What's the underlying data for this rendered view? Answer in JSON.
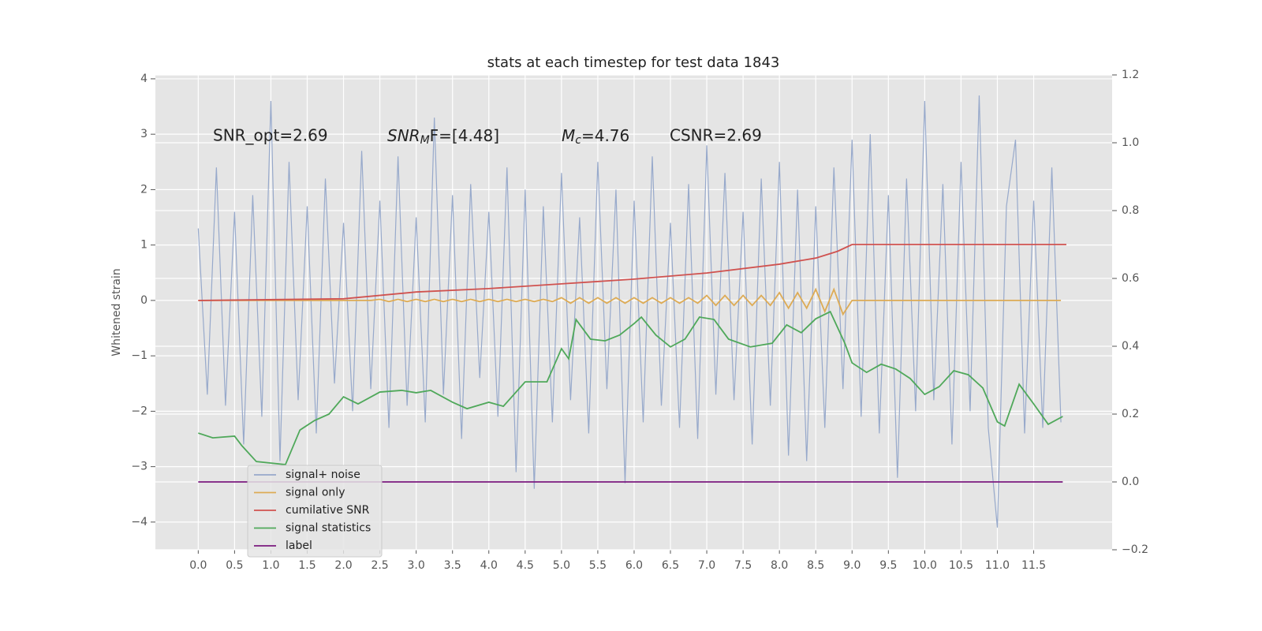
{
  "chart_data": {
    "type": "line",
    "title": "stats at each timestep for test data 1843",
    "ylabel": "Whitened strain",
    "annotations": [
      {
        "text": "SNR_opt=2.69"
      },
      {
        "text": "SNR",
        "subscript": "M",
        "suffix": "F=[4.48]"
      },
      {
        "text": "M",
        "subscript": "c",
        "suffix": "=4.76"
      },
      {
        "text": "CSNR=2.69"
      }
    ],
    "xlim": [
      -0.59,
      12.58
    ],
    "ylim": [
      -4.5,
      4.07
    ],
    "y2lim": [
      -0.2,
      1.2
    ],
    "xticks": [
      {
        "value": 0,
        "label": "0.0"
      },
      0.5,
      {
        "value": 1,
        "label": "1.0"
      },
      1.5,
      {
        "value": 2,
        "label": "2.0"
      },
      2.5,
      {
        "value": 3,
        "label": "3.0"
      },
      3.5,
      {
        "value": 4,
        "label": "4.0"
      },
      4.5,
      {
        "value": 5,
        "label": "5.0"
      },
      5.5,
      {
        "value": 6,
        "label": "6.0"
      },
      6.5,
      {
        "value": 7,
        "label": "7.0"
      },
      7.5,
      {
        "value": 8,
        "label": "8.0"
      },
      8.5,
      {
        "value": 9,
        "label": "9.0"
      },
      9.5,
      {
        "value": 10,
        "label": "10.0"
      },
      10.5,
      {
        "value": 11,
        "label": "11.0"
      },
      11.5
    ],
    "yticks": [
      4,
      3,
      2,
      1,
      0,
      {
        "value": -1,
        "label": "−1"
      },
      {
        "value": -2,
        "label": "−2"
      },
      {
        "value": -3,
        "label": "−3"
      },
      {
        "value": -4,
        "label": "−4"
      }
    ],
    "y2ticks": [
      1.2,
      {
        "value": 1,
        "label": "1.0"
      },
      0.8,
      0.6,
      0.4,
      0.2,
      {
        "value": 0,
        "label": "0.0"
      },
      {
        "value": -0.2,
        "label": "−0.2"
      }
    ],
    "grid": true,
    "legend": "lower left",
    "x": [
      0,
      0.125,
      0.25,
      0.375,
      0.5,
      0.625,
      0.75,
      0.875,
      1,
      1.125,
      1.25,
      1.375,
      1.5,
      1.625,
      1.75,
      1.875,
      2,
      2.125,
      2.25,
      2.375,
      2.5,
      2.625,
      2.75,
      2.875,
      3,
      3.125,
      3.25,
      3.375,
      3.5,
      3.625,
      3.75,
      3.875,
      4,
      4.125,
      4.25,
      4.375,
      4.5,
      4.625,
      4.75,
      4.875,
      5,
      5.125,
      5.25,
      5.375,
      5.5,
      5.625,
      5.75,
      5.875,
      6,
      6.125,
      6.25,
      6.375,
      6.5,
      6.625,
      6.75,
      6.875,
      7,
      7.125,
      7.25,
      7.375,
      7.5,
      7.625,
      7.75,
      7.875,
      8,
      8.125,
      8.25,
      8.375,
      8.5,
      8.625,
      8.75,
      8.875,
      9,
      9.125,
      9.25,
      9.375,
      9.5,
      9.625,
      9.75,
      9.875,
      10,
      10.125,
      10.25,
      10.375,
      10.5,
      10.625,
      10.75,
      10.875,
      11,
      11.125,
      11.25,
      11.375,
      11.5,
      11.625,
      11.75,
      11.875
    ],
    "series": [
      {
        "name": "signal+ noise",
        "color": "#97a9cb",
        "values": [
          1.3,
          -1.7,
          2.4,
          -1.9,
          1.6,
          -2.6,
          1.9,
          -2.1,
          3.6,
          -2.9,
          2.5,
          -1.8,
          1.7,
          -2.4,
          2.2,
          -1.5,
          1.4,
          -2.0,
          2.7,
          -1.6,
          1.8,
          -2.3,
          2.6,
          -1.9,
          1.5,
          -2.2,
          3.3,
          -1.7,
          1.9,
          -2.5,
          2.1,
          -1.4,
          1.6,
          -2.1,
          2.4,
          -3.1,
          2.0,
          -3.4,
          1.7,
          -2.2,
          2.3,
          -1.8,
          1.5,
          -2.4,
          2.5,
          -1.6,
          2.0,
          -3.3,
          1.8,
          -2.2,
          2.6,
          -1.9,
          1.4,
          -2.3,
          2.1,
          -2.5,
          2.8,
          -1.7,
          2.3,
          -1.8,
          1.6,
          -2.6,
          2.2,
          -1.9,
          2.5,
          -2.8,
          2.0,
          -2.9,
          1.7,
          -2.3,
          2.4,
          -1.6,
          2.9,
          -2.1,
          3.0,
          -2.4,
          1.9,
          -3.2,
          2.2,
          -2.0,
          3.6,
          -1.8,
          2.1,
          -2.6,
          2.5,
          -2.0,
          3.7,
          -2.3,
          -4.1,
          1.7,
          2.9,
          -2.4,
          1.8,
          -2.3,
          2.4,
          -2.2
        ]
      },
      {
        "name": "signal only",
        "color": "#ddab55",
        "values": [
          0,
          0,
          0,
          0,
          0,
          0,
          0,
          0,
          0,
          0,
          0,
          0,
          0,
          0,
          0,
          0,
          0,
          0,
          0,
          0,
          0.02,
          -0.02,
          0.02,
          -0.02,
          0.02,
          -0.02,
          0.02,
          -0.02,
          0.02,
          -0.02,
          0.02,
          -0.02,
          0.02,
          -0.02,
          0.02,
          -0.02,
          0.02,
          -0.02,
          0.02,
          -0.02,
          0.05,
          -0.05,
          0.05,
          -0.05,
          0.05,
          -0.05,
          0.05,
          -0.05,
          0.05,
          -0.05,
          0.05,
          -0.05,
          0.05,
          -0.05,
          0.05,
          -0.05,
          0.09,
          -0.09,
          0.09,
          -0.09,
          0.09,
          -0.09,
          0.09,
          -0.09,
          0.14,
          -0.14,
          0.14,
          -0.14,
          0.2,
          -0.2,
          0.2,
          -0.25,
          0,
          0,
          0,
          0,
          0,
          0,
          0,
          0,
          0,
          0,
          0,
          0,
          0,
          0,
          0,
          0,
          0,
          0,
          0,
          0,
          0,
          0,
          0,
          0
        ]
      },
      {
        "name": "cumilative SNR",
        "color": "#d0524f",
        "axis": "y2",
        "x": [
          0,
          2,
          3,
          4,
          5,
          6,
          7,
          8,
          8.5,
          8.8,
          9,
          11.95
        ],
        "values": [
          0.535,
          0.54,
          0.56,
          0.57,
          0.584,
          0.598,
          0.616,
          0.642,
          0.66,
          0.68,
          0.7,
          0.7
        ]
      },
      {
        "name": "signal statistics",
        "color": "#4fa85a",
        "axis": "y2",
        "x": [
          0,
          0.2,
          0.5,
          0.6,
          0.8,
          1.2,
          1.4,
          1.6,
          1.8,
          2.0,
          2.2,
          2.5,
          2.8,
          3.0,
          3.2,
          3.5,
          3.7,
          4.0,
          4.2,
          4.5,
          4.8,
          5.0,
          5.1,
          5.2,
          5.4,
          5.6,
          5.8,
          6.0,
          6.1,
          6.3,
          6.5,
          6.7,
          6.9,
          7.1,
          7.3,
          7.6,
          7.9,
          8.1,
          8.3,
          8.5,
          8.7,
          8.9,
          9.0,
          9.2,
          9.4,
          9.6,
          9.8,
          10.0,
          10.2,
          10.4,
          10.6,
          10.8,
          11.0,
          11.1,
          11.3,
          11.5,
          11.7,
          11.9
        ],
        "values": [
          0.144,
          0.13,
          0.135,
          0.107,
          0.06,
          0.051,
          0.153,
          0.181,
          0.2,
          0.251,
          0.23,
          0.265,
          0.27,
          0.263,
          0.27,
          0.235,
          0.216,
          0.235,
          0.223,
          0.295,
          0.295,
          0.393,
          0.363,
          0.479,
          0.421,
          0.416,
          0.433,
          0.467,
          0.486,
          0.433,
          0.398,
          0.421,
          0.486,
          0.479,
          0.421,
          0.398,
          0.409,
          0.463,
          0.44,
          0.481,
          0.502,
          0.409,
          0.351,
          0.323,
          0.347,
          0.333,
          0.305,
          0.258,
          0.281,
          0.328,
          0.316,
          0.277,
          0.177,
          0.165,
          0.288,
          0.23,
          0.17,
          0.193
        ]
      },
      {
        "name": "label",
        "color": "#7b1a7e",
        "axis": "y2",
        "x": [
          0,
          11.9
        ],
        "values": [
          0,
          0
        ]
      }
    ]
  }
}
